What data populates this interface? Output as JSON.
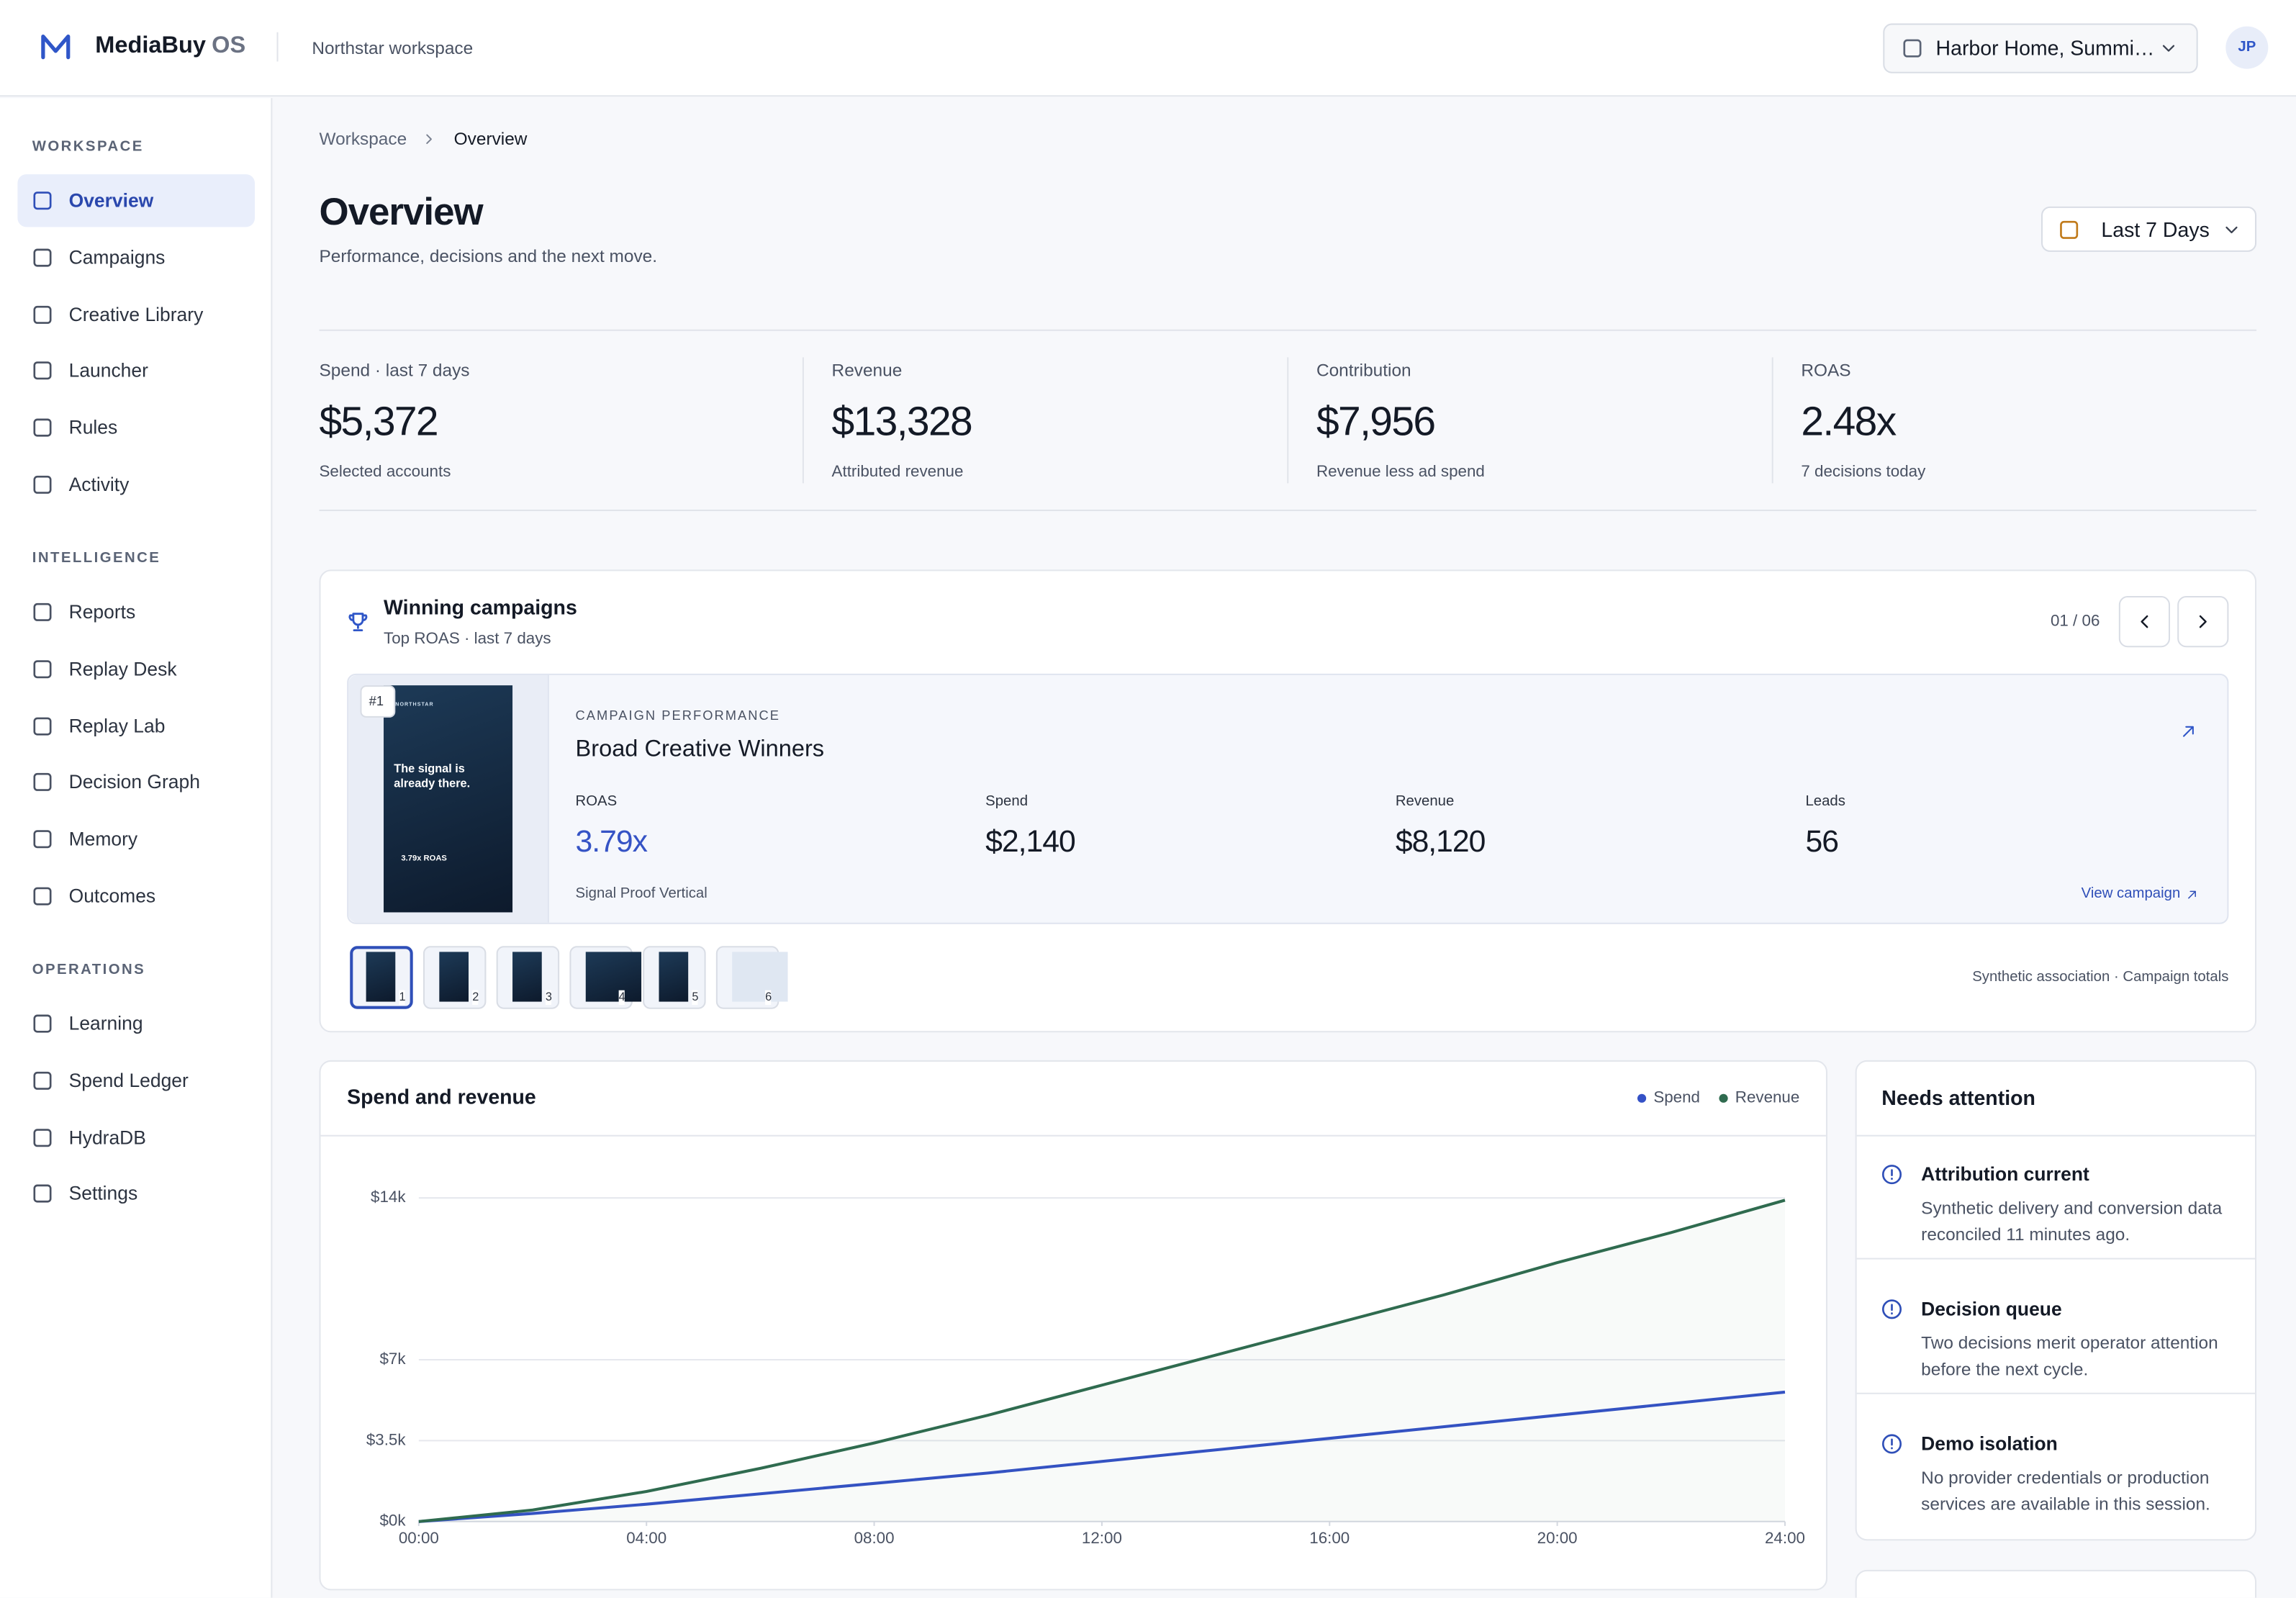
{
  "header": {
    "brand": "MediaBuy",
    "brand_suffix": "OS",
    "workspace": "Northstar workspace",
    "account": "Harbor Home, Summi…",
    "avatar": "JP"
  },
  "sidebar": [
    {
      "title": "WORKSPACE",
      "items": [
        {
          "label": "Overview",
          "active": true
        },
        {
          "label": "Campaigns"
        },
        {
          "label": "Creative Library"
        },
        {
          "label": "Launcher"
        },
        {
          "label": "Rules"
        },
        {
          "label": "Activity"
        }
      ]
    },
    {
      "title": "INTELLIGENCE",
      "items": [
        {
          "label": "Reports"
        },
        {
          "label": "Replay Desk"
        },
        {
          "label": "Replay Lab"
        },
        {
          "label": "Decision Graph"
        },
        {
          "label": "Memory"
        },
        {
          "label": "Outcomes"
        }
      ]
    },
    {
      "title": "OPERATIONS",
      "items": [
        {
          "label": "Learning"
        },
        {
          "label": "Spend Ledger"
        },
        {
          "label": "HydraDB"
        },
        {
          "label": "Settings"
        }
      ]
    }
  ],
  "breadcrumb": [
    "Workspace",
    "Overview"
  ],
  "page": {
    "title": "Overview",
    "subtitle": "Performance, decisions and the next move.",
    "date_range": "Last 7 Days"
  },
  "kpis": [
    {
      "label": "Spend · last 7 days",
      "value": "$5,372",
      "note": "Selected accounts"
    },
    {
      "label": "Revenue",
      "value": "$13,328",
      "note": "Attributed revenue"
    },
    {
      "label": "Contribution",
      "value": "$7,956",
      "note": "Revenue less ad spend"
    },
    {
      "label": "ROAS",
      "value": "2.48x",
      "note": "7 decisions today"
    }
  ],
  "winning": {
    "title": "Winning campaigns",
    "subtitle": "Top ROAS · last 7 days",
    "pager": "01 / 06",
    "rank": "#1",
    "eyebrow": "CAMPAIGN PERFORMANCE",
    "name": "Broad Creative Winners",
    "poster": {
      "brand": "NORTHSTAR",
      "headline": "The signal is already there.",
      "stat": "3.79x ROAS"
    },
    "metrics": [
      {
        "label": "ROAS",
        "value": "3.79x"
      },
      {
        "label": "Spend",
        "value": "$2,140"
      },
      {
        "label": "Revenue",
        "value": "$8,120"
      },
      {
        "label": "Leads",
        "value": "56"
      }
    ],
    "creative": "Signal Proof Vertical",
    "link": "View campaign",
    "thumbnails": [
      "1",
      "2",
      "3",
      "4",
      "5",
      "6"
    ],
    "footnote": "Synthetic association · Campaign totals"
  },
  "chart_data": {
    "type": "line",
    "title": "Spend and revenue",
    "x": [
      0,
      2,
      4,
      6,
      8,
      10,
      12,
      14,
      16,
      18,
      20,
      22,
      24
    ],
    "xlim": [
      0,
      24
    ],
    "xticks": [
      {
        "value": 0,
        "label": "00:00"
      },
      {
        "value": 4,
        "label": "04:00"
      },
      {
        "value": 8,
        "label": "08:00"
      },
      {
        "value": 12,
        "label": "12:00"
      },
      {
        "value": 16,
        "label": "16:00"
      },
      {
        "value": 20,
        "label": "20:00"
      },
      {
        "value": 24,
        "label": "24:00"
      }
    ],
    "ylim": [
      0,
      14000
    ],
    "yticks": [
      {
        "value": 0,
        "label": "$0k"
      },
      {
        "value": 3500,
        "label": "$3.5k"
      },
      {
        "value": 7000,
        "label": "$7k"
      },
      {
        "value": 14000,
        "label": "$14k"
      }
    ],
    "grid": true,
    "legend": "top-right",
    "series": [
      {
        "name": "Spend",
        "color": "#3451c6",
        "values": [
          0,
          350,
          750,
          1200,
          1650,
          2100,
          2600,
          3100,
          3600,
          4100,
          4600,
          5100,
          5600
        ]
      },
      {
        "name": "Revenue",
        "color": "#2f6b4f",
        "values": [
          0,
          500,
          1300,
          2300,
          3400,
          4600,
          5900,
          7200,
          8500,
          9800,
          11200,
          12500,
          13900
        ]
      }
    ]
  },
  "attention": {
    "title": "Needs attention",
    "items": [
      {
        "title": "Attribution current",
        "text": "Synthetic delivery and conversion data reconciled 11 minutes ago."
      },
      {
        "title": "Decision queue",
        "text": "Two decisions merit operator attention before the next cycle."
      },
      {
        "title": "Demo isolation",
        "text": "No provider credentials or production services are available in this session."
      }
    ]
  }
}
